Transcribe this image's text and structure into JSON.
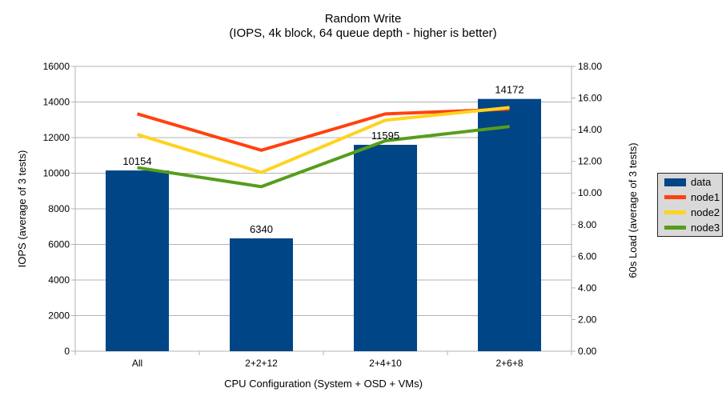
{
  "title": {
    "line1": "Random Write",
    "line2": "(IOPS, 4k block, 64 queue depth - higher is better)"
  },
  "y_axis_left": {
    "title": "IOPS (average of 3 tests)",
    "ticks": [
      "0",
      "2000",
      "4000",
      "6000",
      "8000",
      "10000",
      "12000",
      "14000",
      "16000"
    ]
  },
  "y_axis_right": {
    "title": "60s Load (average of 3 tests)",
    "ticks": [
      "0.00",
      "2.00",
      "4.00",
      "6.00",
      "8.00",
      "10.00",
      "12.00",
      "14.00",
      "16.00",
      "18.00"
    ]
  },
  "x_axis": {
    "title": "CPU Configuration (System + OSD + VMs)",
    "categories": [
      "All",
      "2+2+12",
      "2+4+10",
      "2+6+8"
    ]
  },
  "legend": {
    "items": [
      {
        "label": "data",
        "color": "#004586",
        "shape": "rect"
      },
      {
        "label": "node1",
        "color": "#ff420e",
        "shape": "line"
      },
      {
        "label": "node2",
        "color": "#ffd320",
        "shape": "line"
      },
      {
        "label": "node3",
        "color": "#579d1c",
        "shape": "line"
      }
    ]
  },
  "chart_data": {
    "type": "bar+line combo",
    "title": "Random Write (IOPS, 4k block, 64 queue depth - higher is better)",
    "xlabel": "CPU Configuration (System + OSD + VMs)",
    "ylabel_left": "IOPS (average of 3 tests)",
    "ylabel_right": "60s Load (average of 3 tests)",
    "ylim_left": [
      0,
      16000
    ],
    "ylim_right": [
      0,
      18
    ],
    "grid": true,
    "legend_position": "right",
    "categories": [
      "All",
      "2+2+12",
      "2+4+10",
      "2+6+8"
    ],
    "bar_series": {
      "name": "data",
      "axis": "left",
      "color": "#004586",
      "values": [
        10154,
        6340,
        11595,
        14172
      ],
      "labels": [
        "10154",
        "6340",
        "11595",
        "14172"
      ]
    },
    "line_series": [
      {
        "name": "node1",
        "axis": "right",
        "color": "#ff420e",
        "values": [
          15.0,
          12.7,
          15.0,
          15.3
        ]
      },
      {
        "name": "node2",
        "axis": "right",
        "color": "#ffd320",
        "values": [
          13.7,
          11.3,
          14.6,
          15.4
        ]
      },
      {
        "name": "node3",
        "axis": "right",
        "color": "#579d1c",
        "values": [
          11.6,
          10.4,
          13.3,
          14.2
        ]
      }
    ]
  },
  "colors": {
    "background": "#ffffff",
    "grid": "#b3b3b3",
    "axis": "#b3b3b3",
    "text": "#000000",
    "bar": "#004586",
    "node1": "#ff420e",
    "node2": "#ffd320",
    "node3": "#579d1c",
    "legend_bg": "#d9d9d9",
    "legend_border": "#262626"
  }
}
